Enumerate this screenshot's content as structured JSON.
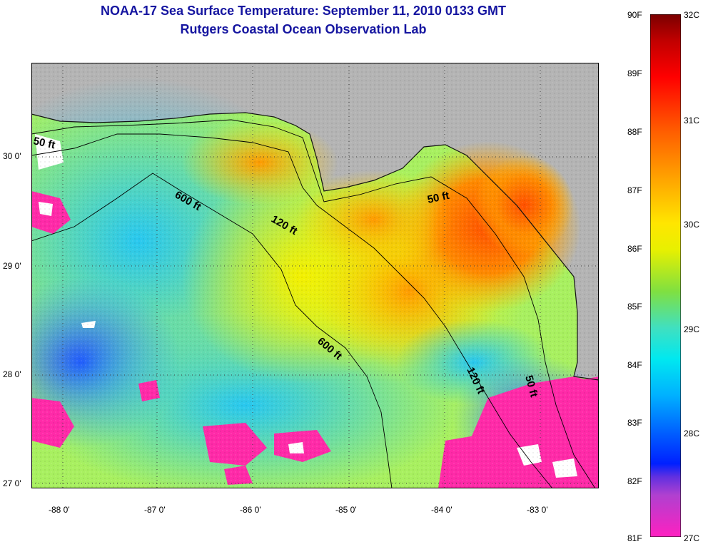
{
  "header": {
    "title_line1": "NOAA-17 Sea Surface Temperature:  September 11, 2010 0133 GMT",
    "title_line2": "Rutgers Coastal Ocean Observation Lab"
  },
  "map": {
    "lon_labels": [
      "-88 0'",
      "-87 0'",
      "-86 0'",
      "-85 0'",
      "-84 0'",
      "-83 0'"
    ],
    "lat_labels": [
      "30 0'",
      "29 0'",
      "28 0'",
      "27 0'"
    ],
    "contour_labels": [
      "50 ft",
      "600 ft",
      "120 ft",
      "50 ft",
      "600 ft",
      "120 ft",
      "50 ft"
    ],
    "colors": {
      "land": "#b4b4b4",
      "warm": "#ff5a00",
      "cool": "#30d6e8",
      "cold": "#ff2aa8"
    }
  },
  "colorbar": {
    "f_labels": [
      "90F",
      "89F",
      "88F",
      "87F",
      "86F",
      "85F",
      "84F",
      "83F",
      "82F",
      "81F"
    ],
    "c_labels": [
      "32C",
      "31C",
      "30C",
      "29C",
      "28C",
      "27C"
    ]
  }
}
